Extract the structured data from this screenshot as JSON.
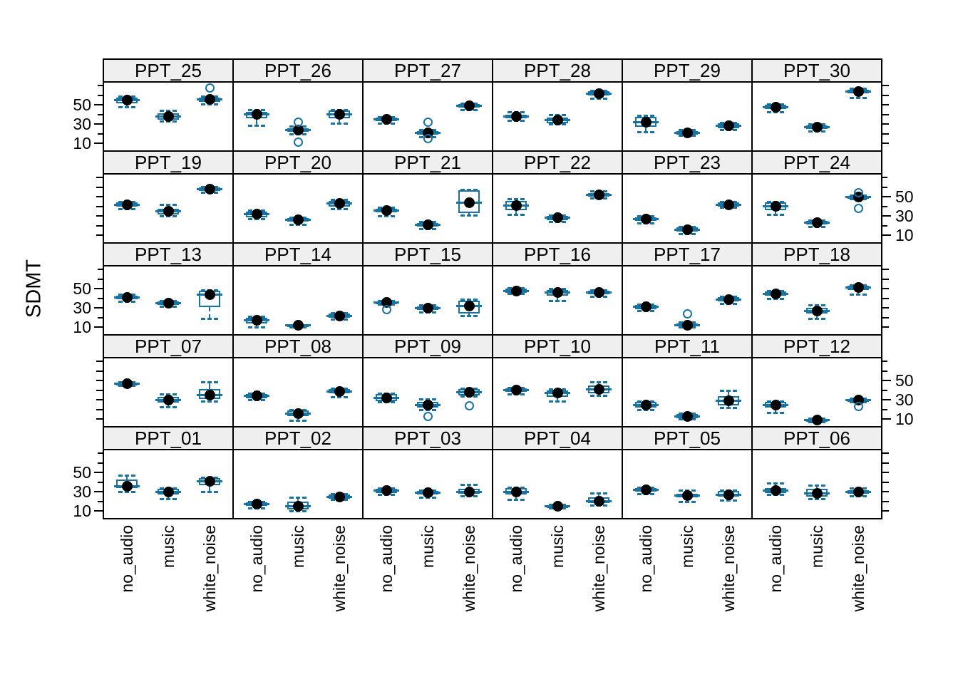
{
  "ylabel": "SDMT",
  "categories": [
    "no_audio",
    "music",
    "white_noise"
  ],
  "y_tick_labels": [
    "50",
    "30",
    "10"
  ],
  "colors": {
    "box_blue": "#1673a3",
    "strip_bg": "#efefef",
    "frame": "#000000",
    "dot": "#000000",
    "background": "#ffffff"
  },
  "chart_data": {
    "type": "boxplot-grid",
    "title": "",
    "ylabel": "SDMT",
    "categories": [
      "no_audio",
      "music",
      "white_noise"
    ],
    "ylim": [
      2,
      74
    ],
    "yticks_all": [
      10,
      20,
      30,
      40,
      50,
      60,
      70
    ],
    "yticks_labeled": [
      10,
      30,
      50
    ],
    "grid_rows": 5,
    "grid_cols": 6,
    "label_sides_by_row": [
      "left",
      "right",
      "left",
      "right",
      "left"
    ],
    "group_format": "[median_dot, q1, q3, whisker_low, whisker_high, [outliers...]] , groups ordered no_audio, music, white_noise",
    "panels_by_row": [
      [
        {
          "id": "PPT_25",
          "groups": [
            [
              55,
              52,
              58,
              48,
              59,
              []
            ],
            [
              38,
              35,
              41,
              33,
              44,
              []
            ],
            [
              56,
              53,
              58,
              51,
              59,
              [
                68
              ]
            ]
          ]
        },
        {
          "id": "PPT_26",
          "groups": [
            [
              40,
              36,
              43,
              29,
              45,
              []
            ],
            [
              24,
              22,
              26,
              20,
              28,
              [
                32,
                11
              ]
            ],
            [
              40,
              36,
              44,
              31,
              45,
              []
            ]
          ]
        },
        {
          "id": "PPT_27",
          "groups": [
            [
              35,
              33,
              37,
              31,
              38,
              []
            ],
            [
              21,
              19,
              23,
              17,
              24,
              [
                32,
                15
              ]
            ],
            [
              49,
              47,
              51,
              45,
              52,
              []
            ]
          ]
        },
        {
          "id": "PPT_28",
          "groups": [
            [
              38,
              36,
              40,
              34,
              43,
              []
            ],
            [
              34,
              31,
              37,
              30,
              40,
              []
            ],
            [
              62,
              60,
              64,
              57,
              65,
              []
            ]
          ]
        },
        {
          "id": "PPT_29",
          "groups": [
            [
              32,
              27,
              38,
              22,
              39,
              []
            ],
            [
              21,
              19,
              23,
              18,
              24,
              []
            ],
            [
              28,
              26,
              31,
              24,
              32,
              []
            ]
          ]
        },
        {
          "id": "PPT_30",
          "groups": [
            [
              48,
              46,
              50,
              43,
              51,
              []
            ],
            [
              27,
              25,
              29,
              23,
              30,
              []
            ],
            [
              64,
              62,
              66,
              58,
              67,
              []
            ]
          ]
        }
      ],
      [
        {
          "id": "PPT_19",
          "groups": [
            [
              42,
              40,
              44,
              38,
              45,
              []
            ],
            [
              35,
              32,
              38,
              30,
              42,
              []
            ],
            [
              58,
              56,
              60,
              55,
              61,
              []
            ]
          ]
        },
        {
          "id": "PPT_20",
          "groups": [
            [
              32,
              29,
              35,
              27,
              36,
              []
            ],
            [
              26,
              24,
              28,
              21,
              29,
              []
            ],
            [
              43,
              40,
              46,
              38,
              47,
              []
            ]
          ]
        },
        {
          "id": "PPT_21",
          "groups": [
            [
              36,
              34,
              38,
              30,
              39,
              []
            ],
            [
              21,
              19,
              23,
              17,
              24,
              []
            ],
            [
              44,
              33,
              57,
              31,
              58,
              []
            ]
          ]
        },
        {
          "id": "PPT_22",
          "groups": [
            [
              41,
              36,
              46,
              32,
              48,
              []
            ],
            [
              28,
              26,
              30,
              24,
              31,
              []
            ],
            [
              52,
              50,
              54,
              49,
              56,
              []
            ]
          ]
        },
        {
          "id": "PPT_23",
          "groups": [
            [
              27,
              25,
              29,
              23,
              30,
              []
            ],
            [
              16,
              14,
              18,
              12,
              19,
              []
            ],
            [
              42,
              40,
              44,
              39,
              45,
              []
            ]
          ]
        },
        {
          "id": "PPT_24",
          "groups": [
            [
              40,
              36,
              44,
              32,
              45,
              []
            ],
            [
              23,
              21,
              25,
              19,
              26,
              []
            ],
            [
              50,
              49,
              51,
              48,
              52,
              [
                54,
                38
              ]
            ]
          ]
        }
      ],
      [
        {
          "id": "PPT_13",
          "groups": [
            [
              41,
              39,
              43,
              37,
              44,
              []
            ],
            [
              35,
              33,
              37,
              32,
              38,
              []
            ],
            [
              44,
              31,
              48,
              19,
              49,
              []
            ]
          ]
        },
        {
          "id": "PPT_14",
          "groups": [
            [
              17,
              14,
              20,
              10,
              21,
              []
            ],
            [
              12,
              11,
              13,
              10,
              13,
              []
            ],
            [
              22,
              20,
              24,
              18,
              25,
              []
            ]
          ]
        },
        {
          "id": "PPT_15",
          "groups": [
            [
              36,
              35,
              37,
              34,
              38,
              [
                28
              ]
            ],
            [
              30,
              28,
              32,
              26,
              33,
              []
            ],
            [
              32,
              24,
              38,
              22,
              39,
              []
            ]
          ]
        },
        {
          "id": "PPT_16",
          "groups": [
            [
              48,
              46,
              50,
              45,
              51,
              []
            ],
            [
              46,
              43,
              49,
              38,
              50,
              []
            ],
            [
              46,
              44,
              48,
              42,
              49,
              []
            ]
          ]
        },
        {
          "id": "PPT_17",
          "groups": [
            [
              31,
              29,
              33,
              27,
              34,
              []
            ],
            [
              12,
              11,
              14,
              10,
              15,
              [
                24
              ]
            ],
            [
              39,
              37,
              41,
              35,
              42,
              []
            ]
          ]
        },
        {
          "id": "PPT_18",
          "groups": [
            [
              45,
              43,
              47,
              40,
              48,
              []
            ],
            [
              27,
              24,
              30,
              19,
              33,
              []
            ],
            [
              51,
              49,
              53,
              44,
              54,
              []
            ]
          ]
        }
      ],
      [
        {
          "id": "PPT_07",
          "groups": [
            [
              47,
              46,
              48,
              45,
              49,
              []
            ],
            [
              30,
              27,
              33,
              23,
              36,
              []
            ],
            [
              35,
              31,
              41,
              29,
              49,
              []
            ]
          ]
        },
        {
          "id": "PPT_08",
          "groups": [
            [
              34,
              32,
              36,
              30,
              37,
              []
            ],
            [
              16,
              13,
              19,
              9,
              20,
              []
            ],
            [
              39,
              37,
              41,
              33,
              42,
              []
            ]
          ]
        },
        {
          "id": "PPT_09",
          "groups": [
            [
              32,
              29,
              36,
              28,
              37,
              []
            ],
            [
              25,
              22,
              28,
              20,
              31,
              [
                13
              ]
            ],
            [
              38,
              35,
              41,
              34,
              42,
              [
                24
              ]
            ]
          ]
        },
        {
          "id": "PPT_10",
          "groups": [
            [
              40,
              38,
              42,
              36,
              43,
              []
            ],
            [
              37,
              33,
              40,
              29,
              41,
              []
            ],
            [
              41,
              37,
              45,
              35,
              49,
              []
            ]
          ]
        },
        {
          "id": "PPT_11",
          "groups": [
            [
              25,
              22,
              28,
              20,
              29,
              []
            ],
            [
              13,
              11,
              15,
              10,
              16,
              []
            ],
            [
              29,
              24,
              34,
              22,
              40,
              []
            ]
          ]
        },
        {
          "id": "PPT_12",
          "groups": [
            [
              25,
              22,
              28,
              17,
              29,
              []
            ],
            [
              9,
              8,
              10,
              7,
              11,
              []
            ],
            [
              30,
              29,
              31,
              28,
              32,
              [
                23
              ]
            ]
          ]
        }
      ],
      [
        {
          "id": "PPT_01",
          "groups": [
            [
              36,
              34,
              43,
              30,
              47,
              []
            ],
            [
              30,
              27,
              33,
              23,
              34,
              []
            ],
            [
              41,
              37,
              44,
              30,
              45,
              []
            ]
          ]
        },
        {
          "id": "PPT_02",
          "groups": [
            [
              17,
              15,
              19,
              13,
              20,
              []
            ],
            [
              15,
              12,
              20,
              10,
              24,
              []
            ],
            [
              25,
              23,
              27,
              22,
              28,
              []
            ]
          ]
        },
        {
          "id": "PPT_03",
          "groups": [
            [
              31,
              29,
              33,
              27,
              34,
              []
            ],
            [
              29,
              27,
              31,
              24,
              32,
              []
            ],
            [
              30,
              28,
              33,
              26,
              38,
              []
            ]
          ]
        },
        {
          "id": "PPT_04",
          "groups": [
            [
              30,
              27,
              34,
              22,
              35,
              []
            ],
            [
              15,
              14,
              16,
              13,
              17,
              []
            ],
            [
              20,
              18,
              24,
              16,
              29,
              []
            ]
          ]
        },
        {
          "id": "PPT_05",
          "groups": [
            [
              32,
              30,
              34,
              28,
              35,
              []
            ],
            [
              26,
              24,
              28,
              20,
              32,
              []
            ],
            [
              27,
              25,
              31,
              21,
              32,
              []
            ]
          ]
        },
        {
          "id": "PPT_06",
          "groups": [
            [
              31,
              29,
              34,
              27,
              39,
              []
            ],
            [
              28,
              25,
              33,
              23,
              37,
              []
            ],
            [
              30,
              28,
              32,
              26,
              34,
              []
            ]
          ]
        }
      ]
    ]
  }
}
